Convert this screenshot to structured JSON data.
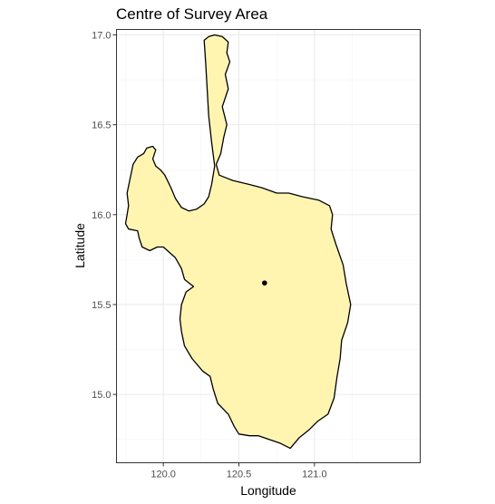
{
  "title": "Centre of Survey Area",
  "chart_data": {
    "type": "map",
    "title": "Centre of Survey Area",
    "xlabel": "Longitude",
    "ylabel": "Latitude",
    "xlim": [
      119.69,
      121.7
    ],
    "ylim": [
      14.62,
      17.03
    ],
    "x_ticks": [
      120.0,
      120.5,
      121.0
    ],
    "x_tick_labels": [
      "120.0",
      "120.5",
      "121.0"
    ],
    "y_ticks": [
      15.0,
      15.5,
      16.0,
      16.5,
      17.0
    ],
    "y_tick_labels": [
      "15.0",
      "15.5",
      "16.0",
      "16.5",
      "17.0"
    ],
    "grid": true,
    "theme": "bw",
    "region_fill": "#fff5b1",
    "region_outline": "#000000",
    "centre_point": {
      "lon": 120.67,
      "lat": 15.62,
      "color": "#000000"
    },
    "outline": [
      [
        120.27,
        16.97
      ],
      [
        120.3,
        16.99
      ],
      [
        120.34,
        17.0
      ],
      [
        120.39,
        16.99
      ],
      [
        120.43,
        16.96
      ],
      [
        120.42,
        16.9
      ],
      [
        120.44,
        16.85
      ],
      [
        120.41,
        16.78
      ],
      [
        120.43,
        16.7
      ],
      [
        120.39,
        16.6
      ],
      [
        120.42,
        16.5
      ],
      [
        120.4,
        16.43
      ],
      [
        120.38,
        16.34
      ],
      [
        120.35,
        16.28
      ],
      [
        120.37,
        16.22
      ],
      [
        120.46,
        16.19
      ],
      [
        120.56,
        16.17
      ],
      [
        120.65,
        16.15
      ],
      [
        120.75,
        16.12
      ],
      [
        120.83,
        16.12
      ],
      [
        120.92,
        16.1
      ],
      [
        121.03,
        16.08
      ],
      [
        121.1,
        16.05
      ],
      [
        121.12,
        16.0
      ],
      [
        121.11,
        15.92
      ],
      [
        121.14,
        15.84
      ],
      [
        121.19,
        15.72
      ],
      [
        121.21,
        15.62
      ],
      [
        121.24,
        15.5
      ],
      [
        121.22,
        15.4
      ],
      [
        121.18,
        15.3
      ],
      [
        121.17,
        15.2
      ],
      [
        121.15,
        15.1
      ],
      [
        121.13,
        14.98
      ],
      [
        121.09,
        14.89
      ],
      [
        121.02,
        14.85
      ],
      [
        120.96,
        14.8
      ],
      [
        120.9,
        14.76
      ],
      [
        120.84,
        14.7
      ],
      [
        120.77,
        14.73
      ],
      [
        120.7,
        14.75
      ],
      [
        120.63,
        14.77
      ],
      [
        120.57,
        14.77
      ],
      [
        120.5,
        14.78
      ],
      [
        120.47,
        14.82
      ],
      [
        120.43,
        14.89
      ],
      [
        120.36,
        14.95
      ],
      [
        120.33,
        15.03
      ],
      [
        120.31,
        15.1
      ],
      [
        120.26,
        15.13
      ],
      [
        120.19,
        15.2
      ],
      [
        120.14,
        15.27
      ],
      [
        120.12,
        15.35
      ],
      [
        120.11,
        15.42
      ],
      [
        120.12,
        15.5
      ],
      [
        120.15,
        15.57
      ],
      [
        120.2,
        15.6
      ],
      [
        120.14,
        15.64
      ],
      [
        120.12,
        15.7
      ],
      [
        120.08,
        15.76
      ],
      [
        120.0,
        15.82
      ],
      [
        119.96,
        15.82
      ],
      [
        119.91,
        15.8
      ],
      [
        119.86,
        15.82
      ],
      [
        119.84,
        15.87
      ],
      [
        119.83,
        15.91
      ],
      [
        119.77,
        15.92
      ],
      [
        119.75,
        15.95
      ],
      [
        119.76,
        16.0
      ],
      [
        119.77,
        16.05
      ],
      [
        119.76,
        16.12
      ],
      [
        119.78,
        16.2
      ],
      [
        119.8,
        16.28
      ],
      [
        119.83,
        16.32
      ],
      [
        119.87,
        16.34
      ],
      [
        119.89,
        16.37
      ],
      [
        119.93,
        16.38
      ],
      [
        119.95,
        16.36
      ],
      [
        119.93,
        16.31
      ],
      [
        119.95,
        16.27
      ],
      [
        119.98,
        16.25
      ],
      [
        120.01,
        16.22
      ],
      [
        120.05,
        16.15
      ],
      [
        120.08,
        16.09
      ],
      [
        120.12,
        16.04
      ],
      [
        120.17,
        16.02
      ],
      [
        120.22,
        16.03
      ],
      [
        120.27,
        16.06
      ],
      [
        120.3,
        16.1
      ],
      [
        120.32,
        16.17
      ],
      [
        120.34,
        16.27
      ],
      [
        120.32,
        16.4
      ],
      [
        120.3,
        16.55
      ],
      [
        120.29,
        16.7
      ],
      [
        120.28,
        16.85
      ]
    ]
  }
}
